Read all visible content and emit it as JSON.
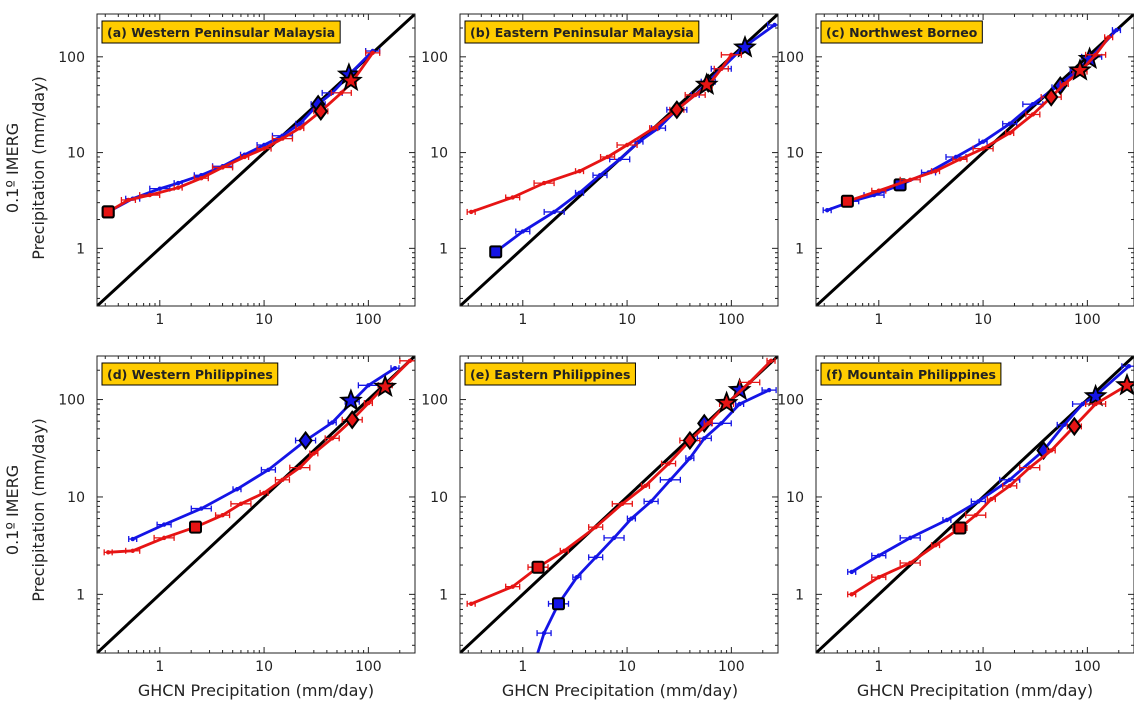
{
  "figure": {
    "ylabel_line1": "0.1º IMERG",
    "ylabel_line2": "Precipitation (mm/day)",
    "xlabel": "GHCN Precipitation (mm/day)"
  },
  "colors": {
    "series_a": "#1414e6",
    "series_b": "#e61414",
    "one_to_one": "#000000",
    "title_box": "#ffcc00"
  },
  "chart_data": [
    {
      "type": "line",
      "scale": "log-log",
      "title": "(a) Western Peninsular Malaysia",
      "xlim": [
        0.25,
        280
      ],
      "ylim": [
        0.25,
        280
      ],
      "xticks": [
        "1",
        "10",
        "100"
      ],
      "yticks": [
        "1",
        "10",
        "100"
      ],
      "series": [
        {
          "color": "blue",
          "x": [
            0.32,
            0.55,
            1.0,
            1.5,
            2.5,
            4.0,
            6.5,
            10,
            15,
            22,
            33,
            45,
            70,
            110
          ],
          "y": [
            2.4,
            3.3,
            4.2,
            4.8,
            5.8,
            7.2,
            9.5,
            12,
            15,
            20,
            32,
            42,
            70,
            115
          ],
          "markers": [
            {
              "x": 0.32,
              "y": 2.4,
              "shape": "square"
            },
            {
              "x": 33,
              "y": 32,
              "shape": "diamond"
            },
            {
              "x": 65,
              "y": 65,
              "shape": "star"
            }
          ]
        },
        {
          "color": "red",
          "x": [
            0.32,
            0.5,
            0.8,
            1.5,
            2.5,
            4.0,
            6.5,
            10,
            15,
            22,
            35,
            55,
            70,
            110
          ],
          "y": [
            2.4,
            3.2,
            3.6,
            4.3,
            5.4,
            7.0,
            9.0,
            11,
            14,
            18,
            27,
            42,
            55,
            110
          ],
          "markers": [
            {
              "x": 0.32,
              "y": 2.4,
              "shape": "square"
            },
            {
              "x": 35,
              "y": 27,
              "shape": "diamond"
            },
            {
              "x": 68,
              "y": 56,
              "shape": "star"
            }
          ]
        }
      ]
    },
    {
      "type": "line",
      "scale": "log-log",
      "title": "(b) Eastern Peninsular Malaysia",
      "xlim": [
        0.25,
        280
      ],
      "ylim": [
        0.25,
        280
      ],
      "xticks": [
        "1",
        "10",
        "100"
      ],
      "yticks": [
        "1",
        "10",
        "100"
      ],
      "series": [
        {
          "color": "blue",
          "x": [
            0.55,
            1.0,
            2.0,
            3.5,
            5.5,
            8.5,
            13,
            20,
            30,
            45,
            60,
            80,
            130,
            260
          ],
          "y": [
            0.92,
            1.5,
            2.4,
            3.8,
            5.8,
            8.5,
            13,
            18,
            28,
            40,
            55,
            75,
            125,
            215
          ],
          "markers": [
            {
              "x": 0.55,
              "y": 0.92,
              "shape": "square"
            },
            {
              "x": 60,
              "y": 53,
              "shape": "diamond"
            },
            {
              "x": 135,
              "y": 125,
              "shape": "star"
            }
          ]
        },
        {
          "color": "red",
          "x": [
            0.32,
            0.8,
            1.6,
            3.5,
            6.5,
            10,
            18,
            30,
            45,
            60,
            80,
            100
          ],
          "y": [
            2.4,
            3.4,
            4.8,
            6.4,
            9.0,
            12,
            18,
            28,
            40,
            50,
            75,
            105
          ],
          "markers": [
            {
              "x": 30,
              "y": 28,
              "shape": "diamond"
            },
            {
              "x": 58,
              "y": 51,
              "shape": "star"
            }
          ]
        }
      ]
    },
    {
      "type": "line",
      "scale": "log-log",
      "title": "(c) Northwest Borneo",
      "xlim": [
        0.25,
        280
      ],
      "ylim": [
        0.25,
        280
      ],
      "xticks": [
        "1",
        "10",
        "100"
      ],
      "yticks": [
        "1",
        "10",
        "100"
      ],
      "series": [
        {
          "color": "blue",
          "x": [
            0.32,
            0.55,
            0.9,
            1.6,
            3.0,
            5.5,
            10,
            18,
            30,
            50,
            80,
            110,
            190
          ],
          "y": [
            2.5,
            3.1,
            3.6,
            4.6,
            6.2,
            9.0,
            13,
            20,
            32,
            48,
            72,
            100,
            190
          ],
          "markers": [
            {
              "x": 1.6,
              "y": 4.6,
              "shape": "square"
            },
            {
              "x": 55,
              "y": 50,
              "shape": "diamond"
            },
            {
              "x": 105,
              "y": 95,
              "shape": "star"
            }
          ]
        },
        {
          "color": "red",
          "x": [
            0.5,
            1.0,
            2.0,
            3.5,
            6.0,
            10,
            18,
            30,
            45,
            60,
            85,
            120,
            160
          ],
          "y": [
            3.1,
            4.0,
            5.2,
            6.4,
            8.5,
            11,
            16,
            25,
            38,
            52,
            70,
            105,
            160
          ],
          "markers": [
            {
              "x": 0.5,
              "y": 3.1,
              "shape": "square"
            },
            {
              "x": 45,
              "y": 38,
              "shape": "diamond"
            },
            {
              "x": 85,
              "y": 72,
              "shape": "star"
            }
          ]
        }
      ]
    },
    {
      "type": "line",
      "scale": "log-log",
      "title": "(d) Western Philippines",
      "xlim": [
        0.25,
        280
      ],
      "ylim": [
        0.25,
        280
      ],
      "xticks": [
        "1",
        "10",
        "100"
      ],
      "yticks": [
        "1",
        "10",
        "100"
      ],
      "series": [
        {
          "color": "blue",
          "x": [
            0.55,
            1.1,
            2.5,
            5.5,
            11,
            25,
            45,
            70,
            100,
            180
          ],
          "y": [
            3.7,
            5.2,
            7.6,
            12,
            19,
            38,
            58,
            95,
            140,
            210
          ],
          "markers": [
            {
              "x": 25,
              "y": 38,
              "shape": "diamond"
            },
            {
              "x": 68,
              "y": 97,
              "shape": "star"
            }
          ]
        },
        {
          "color": "red",
          "x": [
            0.32,
            0.55,
            1.1,
            2.2,
            4.0,
            6.0,
            10,
            15,
            22,
            30,
            45,
            70,
            100,
            145,
            250
          ],
          "y": [
            2.7,
            2.8,
            3.8,
            4.9,
            6.5,
            8.5,
            11,
            15,
            20,
            28,
            40,
            62,
            92,
            140,
            250
          ],
          "markers": [
            {
              "x": 2.2,
              "y": 4.9,
              "shape": "square"
            },
            {
              "x": 70,
              "y": 62,
              "shape": "diamond"
            },
            {
              "x": 145,
              "y": 135,
              "shape": "star"
            }
          ]
        }
      ]
    },
    {
      "type": "line",
      "scale": "log-log",
      "title": "(e) Eastern Philippines",
      "xlim": [
        0.25,
        280
      ],
      "ylim": [
        0.25,
        280
      ],
      "xticks": [
        "1",
        "10",
        "100"
      ],
      "yticks": [
        "1",
        "10",
        "100"
      ],
      "series": [
        {
          "color": "blue",
          "x": [
            1.3,
            1.6,
            2.2,
            3.3,
            5.0,
            7.5,
            11,
            17,
            26,
            40,
            55,
            80,
            120,
            230
          ],
          "y": [
            0.2,
            0.4,
            0.8,
            1.5,
            2.4,
            3.8,
            6.0,
            9.0,
            15,
            25,
            40,
            57,
            90,
            125
          ],
          "markers": [
            {
              "x": 2.2,
              "y": 0.8,
              "shape": "square"
            },
            {
              "x": 55,
              "y": 57,
              "shape": "diamond"
            },
            {
              "x": 120,
              "y": 125,
              "shape": "star"
            }
          ]
        },
        {
          "color": "red",
          "x": [
            0.32,
            0.8,
            1.4,
            2.5,
            5.0,
            9.0,
            15,
            25,
            40,
            60,
            90,
            150,
            240
          ],
          "y": [
            0.8,
            1.2,
            1.9,
            2.8,
            4.9,
            8.5,
            13,
            22,
            38,
            57,
            90,
            150,
            250
          ],
          "markers": [
            {
              "x": 1.4,
              "y": 1.9,
              "shape": "square"
            },
            {
              "x": 40,
              "y": 38,
              "shape": "diamond"
            },
            {
              "x": 90,
              "y": 92,
              "shape": "star"
            }
          ]
        }
      ]
    },
    {
      "type": "line",
      "scale": "log-log",
      "title": "(f) Mountain Philippines",
      "xlim": [
        0.25,
        280
      ],
      "ylim": [
        0.25,
        280
      ],
      "xticks": [
        "1",
        "10",
        "100"
      ],
      "yticks": [
        "1",
        "10",
        "100"
      ],
      "series": [
        {
          "color": "blue",
          "x": [
            0.55,
            1.0,
            2.0,
            4.5,
            9.0,
            18,
            38,
            60,
            90,
            120,
            250
          ],
          "y": [
            1.7,
            2.5,
            3.8,
            5.8,
            9.0,
            15,
            30,
            55,
            90,
            110,
            220
          ],
          "markers": [
            {
              "x": 38,
              "y": 30,
              "shape": "diamond"
            },
            {
              "x": 120,
              "y": 108,
              "shape": "star"
            }
          ]
        },
        {
          "color": "red",
          "x": [
            0.55,
            1.0,
            2.0,
            3.5,
            6.0,
            8.5,
            12,
            18,
            28,
            45,
            75,
            120,
            240
          ],
          "y": [
            1.0,
            1.5,
            2.1,
            3.2,
            4.8,
            6.5,
            9.5,
            13,
            20,
            30,
            53,
            90,
            140
          ],
          "markers": [
            {
              "x": 6.0,
              "y": 4.8,
              "shape": "square"
            },
            {
              "x": 75,
              "y": 53,
              "shape": "diamond"
            },
            {
              "x": 240,
              "y": 140,
              "shape": "star"
            }
          ]
        }
      ]
    }
  ]
}
